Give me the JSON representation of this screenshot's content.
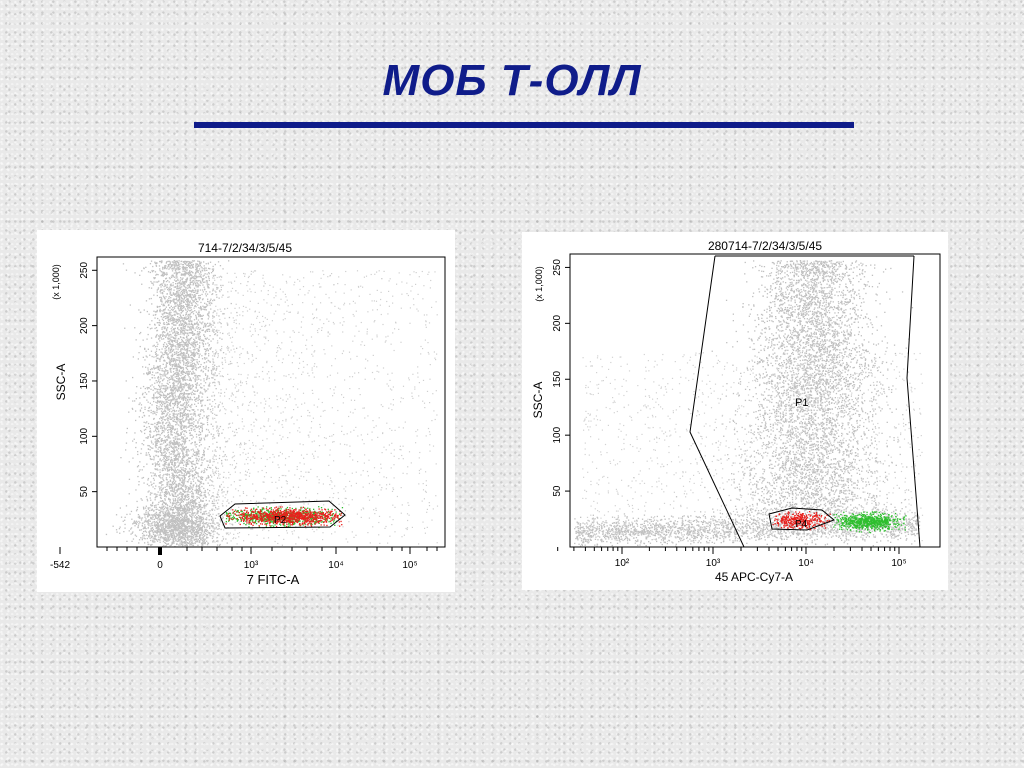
{
  "slide": {
    "title": "МОБ  Т-ОЛЛ"
  },
  "chart_data": [
    {
      "type": "scatter",
      "title": "714-7/2/34/3/5/45",
      "xlabel": "7 FITC-A",
      "ylabel": "SSC-A",
      "y_multiplier": "(x 1,000)",
      "x_scale": "biexponential",
      "x_tick_labels": [
        "-542",
        "0",
        "10³",
        "10⁴",
        "10⁵"
      ],
      "y_ticks": [
        50,
        100,
        150,
        200,
        250
      ],
      "ylim": [
        0,
        262
      ],
      "gates": [
        {
          "name": "P2",
          "color": "#000000"
        }
      ],
      "populations": [
        {
          "color": "#c0c0c0"
        },
        {
          "color": "#e8201c"
        },
        {
          "color": "#2fbf2f"
        }
      ],
      "colors": {
        "background_events": "#c0c0c0",
        "red_events": "#e8201c",
        "green_events": "#2fbf2f"
      }
    },
    {
      "type": "scatter",
      "title": "280714-7/2/34/3/5/45",
      "xlabel": "45 APC-Cy7-A",
      "ylabel": "SSC-A",
      "y_multiplier": "(x 1,000)",
      "x_scale": "log",
      "x_tick_labels": [
        "10²",
        "10³",
        "10⁴",
        "10⁵"
      ],
      "y_ticks": [
        50,
        100,
        150,
        200,
        250
      ],
      "ylim": [
        0,
        262
      ],
      "gates": [
        {
          "name": "P1",
          "color": "#000000"
        },
        {
          "name": "P4",
          "color": "#000000"
        }
      ],
      "populations": [
        {
          "color": "#c0c0c0"
        },
        {
          "color": "#e8201c"
        },
        {
          "color": "#2fbf2f"
        }
      ],
      "colors": {
        "background_events": "#c0c0c0",
        "red_events": "#e8201c",
        "green_events": "#2fbf2f"
      }
    }
  ]
}
